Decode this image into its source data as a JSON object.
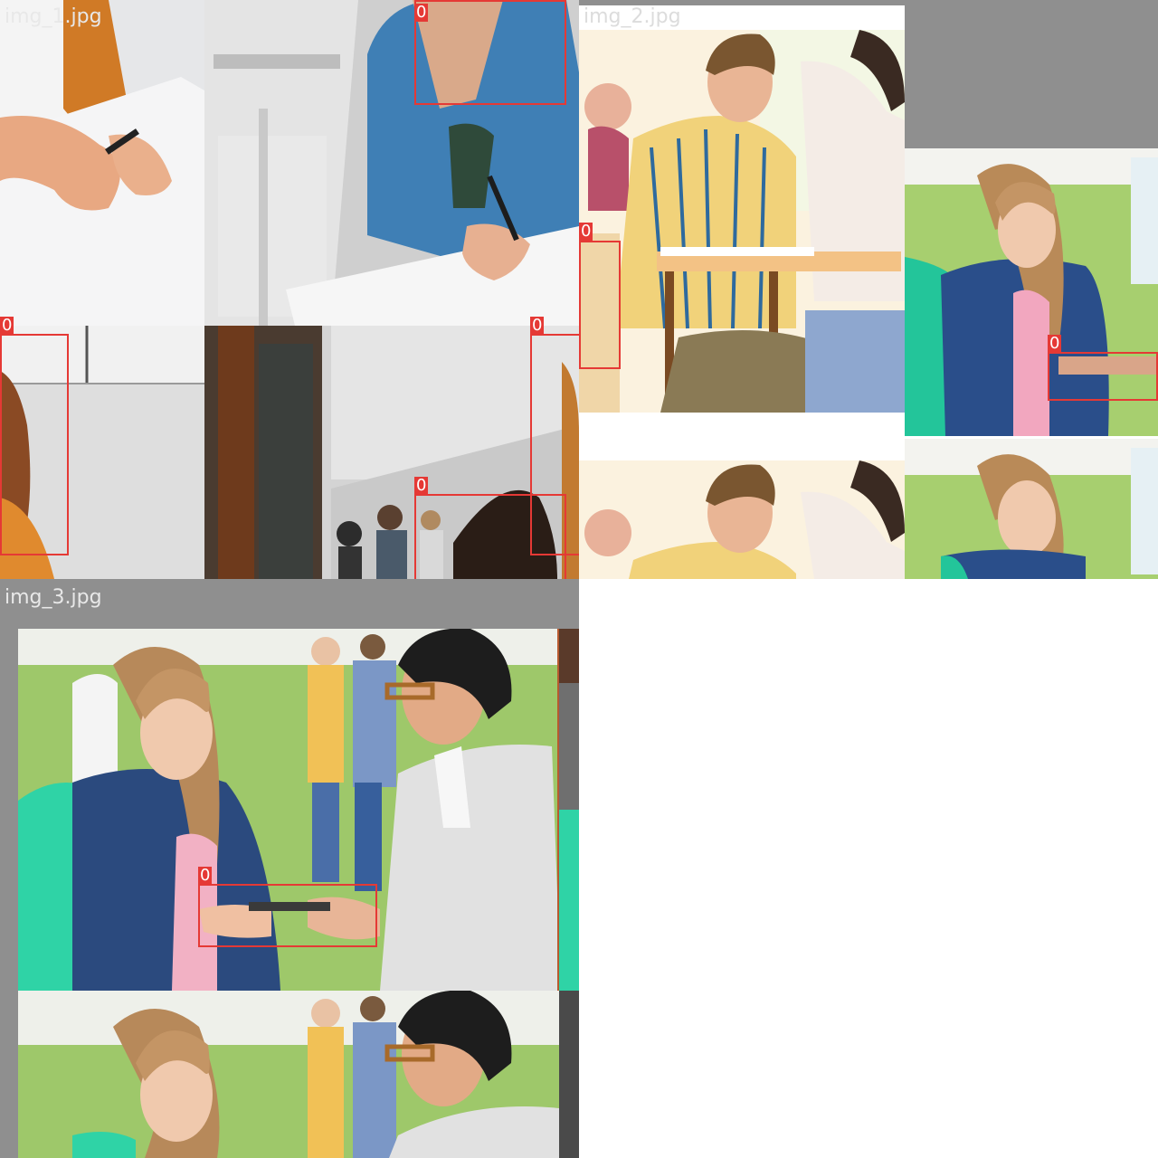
{
  "mosaics": [
    {
      "caption": "img_1.jpg"
    },
    {
      "caption": "img_2.jpg"
    },
    {
      "caption": "img_3.jpg"
    }
  ],
  "detection_label": "0",
  "colors": {
    "box": "#e53935",
    "letterbox": "#8f8f8f",
    "caption": "#e8e8e8"
  }
}
